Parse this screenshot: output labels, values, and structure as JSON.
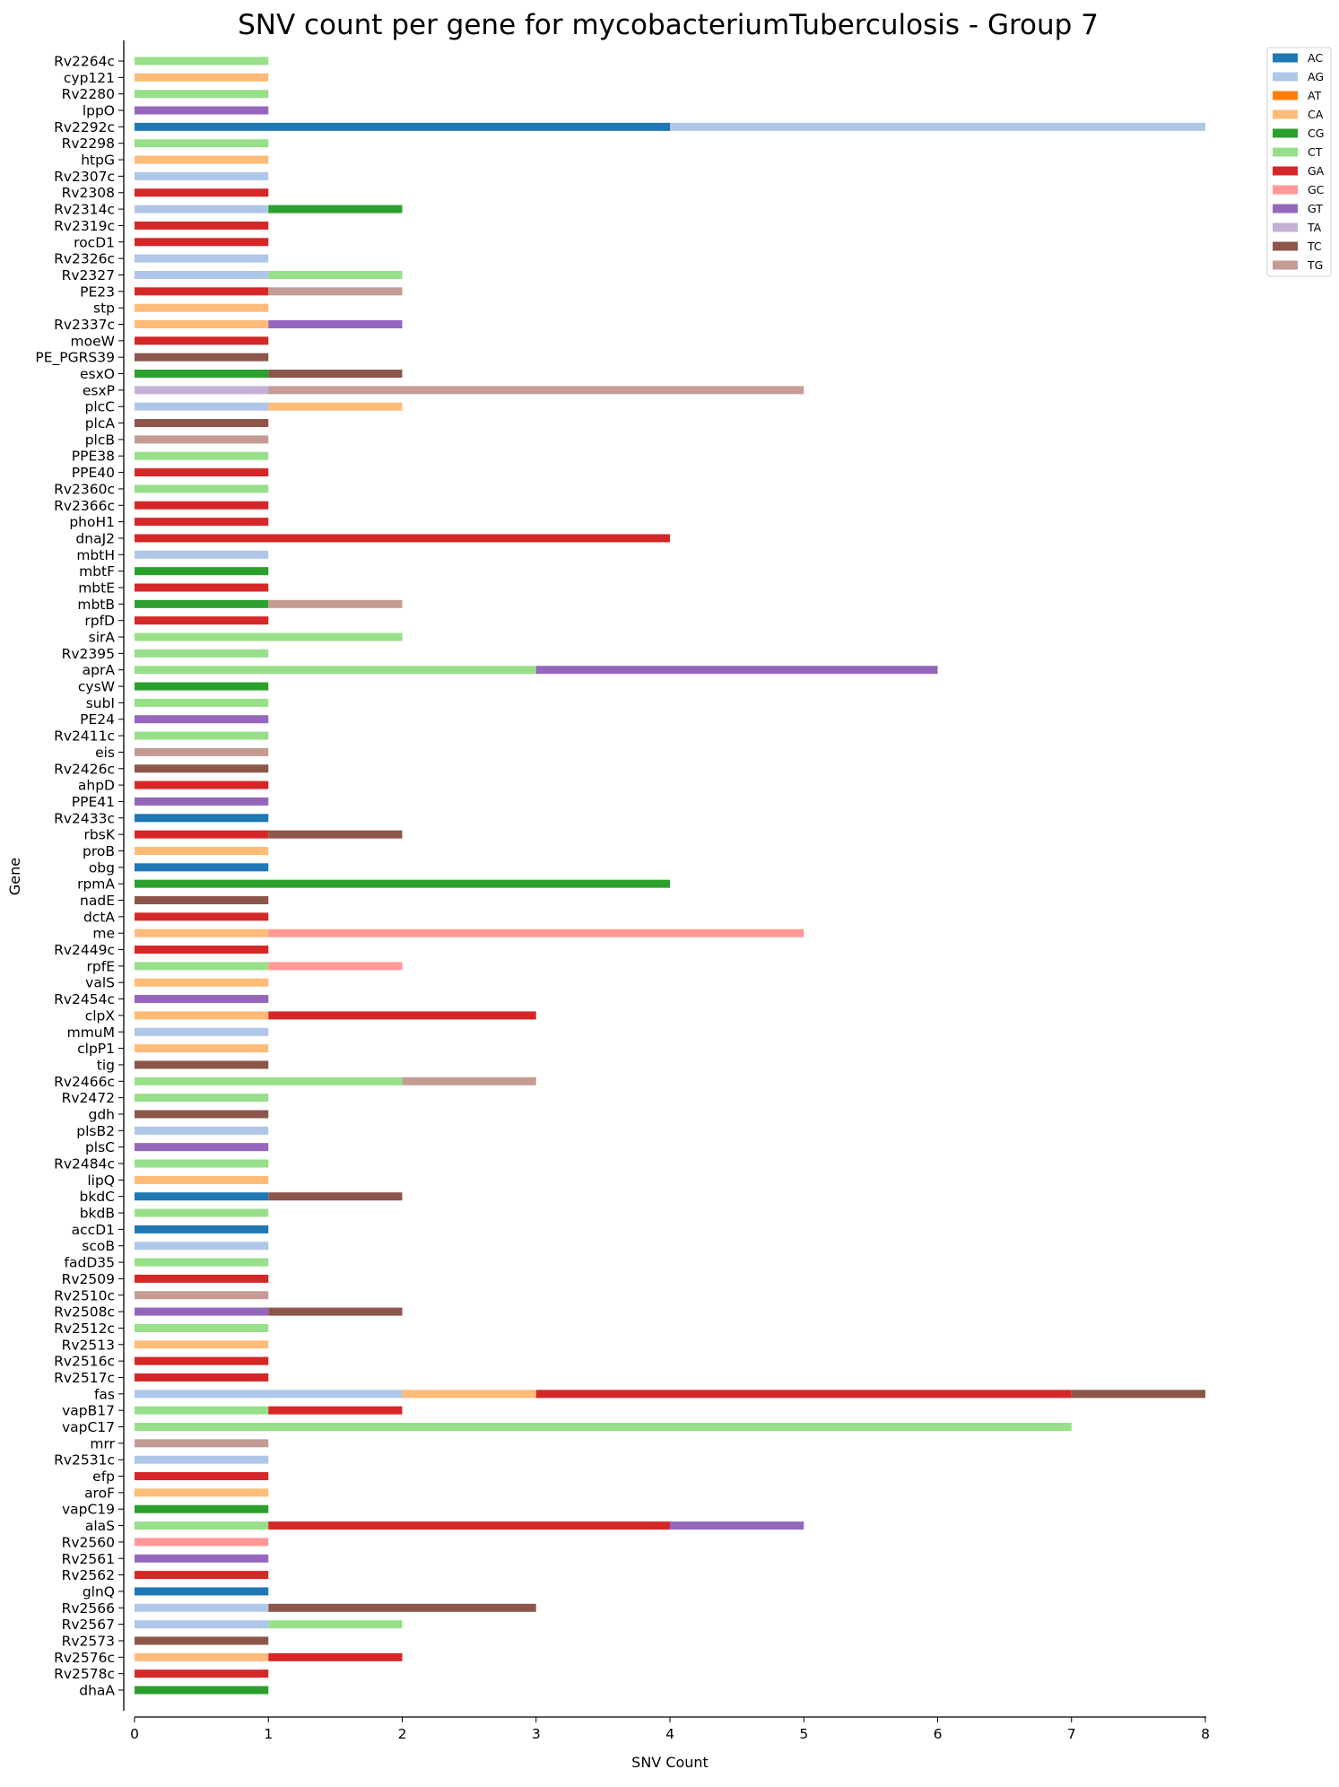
{
  "chart_data": {
    "type": "bar",
    "orientation": "horizontal",
    "stacked": true,
    "title": "SNV count per gene for mycobacteriumTuberculosis - Group 7",
    "xlabel": "SNV Count",
    "ylabel": "Gene",
    "xlim": [
      0,
      8
    ],
    "xticks": [
      "0",
      "1",
      "2",
      "3",
      "4",
      "5",
      "6",
      "7",
      "8"
    ],
    "grid": false,
    "legend_position": "top-right-outside",
    "legend": [
      {
        "name": "AC",
        "color": "#1f77b4"
      },
      {
        "name": "AG",
        "color": "#aec7e8"
      },
      {
        "name": "AT",
        "color": "#ff7f0e"
      },
      {
        "name": "CA",
        "color": "#ffbb78"
      },
      {
        "name": "CG",
        "color": "#2ca02c"
      },
      {
        "name": "CT",
        "color": "#98df8a"
      },
      {
        "name": "GA",
        "color": "#d62728"
      },
      {
        "name": "GC",
        "color": "#ff9896"
      },
      {
        "name": "GT",
        "color": "#9467bd"
      },
      {
        "name": "TA",
        "color": "#c5b0d5"
      },
      {
        "name": "TC",
        "color": "#8c564b"
      },
      {
        "name": "TG",
        "color": "#c49c94"
      }
    ],
    "genes": [
      {
        "gene": "Rv2264c",
        "snvs": {
          "CT": 1
        }
      },
      {
        "gene": "cyp121",
        "snvs": {
          "CA": 1
        }
      },
      {
        "gene": "Rv2280",
        "snvs": {
          "CT": 1
        }
      },
      {
        "gene": "lppO",
        "snvs": {
          "GT": 1
        }
      },
      {
        "gene": "Rv2292c",
        "snvs": {
          "AC": 4,
          "AG": 4
        }
      },
      {
        "gene": "Rv2298",
        "snvs": {
          "CT": 1
        }
      },
      {
        "gene": "htpG",
        "snvs": {
          "CA": 1
        }
      },
      {
        "gene": "Rv2307c",
        "snvs": {
          "AG": 1
        }
      },
      {
        "gene": "Rv2308",
        "snvs": {
          "GA": 1
        }
      },
      {
        "gene": "Rv2314c",
        "snvs": {
          "AG": 1,
          "CG": 1
        }
      },
      {
        "gene": "Rv2319c",
        "snvs": {
          "GA": 1
        }
      },
      {
        "gene": "rocD1",
        "snvs": {
          "GA": 1
        }
      },
      {
        "gene": "Rv2326c",
        "snvs": {
          "AG": 1
        }
      },
      {
        "gene": "Rv2327",
        "snvs": {
          "AG": 1,
          "CT": 1
        }
      },
      {
        "gene": "PE23",
        "snvs": {
          "GA": 1,
          "TG": 1
        }
      },
      {
        "gene": "stp",
        "snvs": {
          "CA": 1
        }
      },
      {
        "gene": "Rv2337c",
        "snvs": {
          "CA": 1,
          "GT": 1
        }
      },
      {
        "gene": "moeW",
        "snvs": {
          "GA": 1
        }
      },
      {
        "gene": "PE_PGRS39",
        "snvs": {
          "TC": 1
        }
      },
      {
        "gene": "esxO",
        "snvs": {
          "CG": 1,
          "TC": 1
        }
      },
      {
        "gene": "esxP",
        "snvs": {
          "TA": 1,
          "TG": 4
        }
      },
      {
        "gene": "plcC",
        "snvs": {
          "AG": 1,
          "CA": 1
        }
      },
      {
        "gene": "plcA",
        "snvs": {
          "TC": 1
        }
      },
      {
        "gene": "plcB",
        "snvs": {
          "TG": 1
        }
      },
      {
        "gene": "PPE38",
        "snvs": {
          "CT": 1
        }
      },
      {
        "gene": "PPE40",
        "snvs": {
          "GA": 1
        }
      },
      {
        "gene": "Rv2360c",
        "snvs": {
          "CT": 1
        }
      },
      {
        "gene": "Rv2366c",
        "snvs": {
          "GA": 1
        }
      },
      {
        "gene": "phoH1",
        "snvs": {
          "GA": 1
        }
      },
      {
        "gene": "dnaJ2",
        "snvs": {
          "GA": 4
        }
      },
      {
        "gene": "mbtH",
        "snvs": {
          "AG": 1
        }
      },
      {
        "gene": "mbtF",
        "snvs": {
          "CG": 1
        }
      },
      {
        "gene": "mbtE",
        "snvs": {
          "GA": 1
        }
      },
      {
        "gene": "mbtB",
        "snvs": {
          "CG": 1,
          "TG": 1
        }
      },
      {
        "gene": "rpfD",
        "snvs": {
          "GA": 1
        }
      },
      {
        "gene": "sirA",
        "snvs": {
          "CT": 2
        }
      },
      {
        "gene": "Rv2395",
        "snvs": {
          "CT": 1
        }
      },
      {
        "gene": "aprA",
        "snvs": {
          "CT": 3,
          "GT": 3
        }
      },
      {
        "gene": "cysW",
        "snvs": {
          "CG": 1
        }
      },
      {
        "gene": "subI",
        "snvs": {
          "CT": 1
        }
      },
      {
        "gene": "PE24",
        "snvs": {
          "GT": 1
        }
      },
      {
        "gene": "Rv2411c",
        "snvs": {
          "CT": 1
        }
      },
      {
        "gene": "eis",
        "snvs": {
          "TG": 1
        }
      },
      {
        "gene": "Rv2426c",
        "snvs": {
          "TC": 1
        }
      },
      {
        "gene": "ahpD",
        "snvs": {
          "GA": 1
        }
      },
      {
        "gene": "PPE41",
        "snvs": {
          "GT": 1
        }
      },
      {
        "gene": "Rv2433c",
        "snvs": {
          "AC": 1
        }
      },
      {
        "gene": "rbsK",
        "snvs": {
          "GA": 1,
          "TC": 1
        }
      },
      {
        "gene": "proB",
        "snvs": {
          "CA": 1
        }
      },
      {
        "gene": "obg",
        "snvs": {
          "AC": 1
        }
      },
      {
        "gene": "rpmA",
        "snvs": {
          "CG": 4
        }
      },
      {
        "gene": "nadE",
        "snvs": {
          "TC": 1
        }
      },
      {
        "gene": "dctA",
        "snvs": {
          "GA": 1
        }
      },
      {
        "gene": "me",
        "snvs": {
          "CA": 1,
          "GC": 4
        }
      },
      {
        "gene": "Rv2449c",
        "snvs": {
          "GA": 1
        }
      },
      {
        "gene": "rpfE",
        "snvs": {
          "CT": 1,
          "GC": 1
        }
      },
      {
        "gene": "valS",
        "snvs": {
          "CA": 1
        }
      },
      {
        "gene": "Rv2454c",
        "snvs": {
          "GT": 1
        }
      },
      {
        "gene": "clpX",
        "snvs": {
          "CA": 1,
          "GA": 2
        }
      },
      {
        "gene": "mmuM",
        "snvs": {
          "AG": 1
        }
      },
      {
        "gene": "clpP1",
        "snvs": {
          "CA": 1
        }
      },
      {
        "gene": "tig",
        "snvs": {
          "TC": 1
        }
      },
      {
        "gene": "Rv2466c",
        "snvs": {
          "CT": 2,
          "TG": 1
        }
      },
      {
        "gene": "Rv2472",
        "snvs": {
          "CT": 1
        }
      },
      {
        "gene": "gdh",
        "snvs": {
          "TC": 1
        }
      },
      {
        "gene": "plsB2",
        "snvs": {
          "AG": 1
        }
      },
      {
        "gene": "plsC",
        "snvs": {
          "GT": 1
        }
      },
      {
        "gene": "Rv2484c",
        "snvs": {
          "CT": 1
        }
      },
      {
        "gene": "lipQ",
        "snvs": {
          "CA": 1
        }
      },
      {
        "gene": "bkdC",
        "snvs": {
          "AC": 1,
          "TC": 1
        }
      },
      {
        "gene": "bkdB",
        "snvs": {
          "CT": 1
        }
      },
      {
        "gene": "accD1",
        "snvs": {
          "AC": 1
        }
      },
      {
        "gene": "scoB",
        "snvs": {
          "AG": 1
        }
      },
      {
        "gene": "fadD35",
        "snvs": {
          "CT": 1
        }
      },
      {
        "gene": "Rv2509",
        "snvs": {
          "GA": 1
        }
      },
      {
        "gene": "Rv2510c",
        "snvs": {
          "TG": 1
        }
      },
      {
        "gene": "Rv2508c",
        "snvs": {
          "GT": 1,
          "TC": 1
        }
      },
      {
        "gene": "Rv2512c",
        "snvs": {
          "CT": 1
        }
      },
      {
        "gene": "Rv2513",
        "snvs": {
          "CA": 1
        }
      },
      {
        "gene": "Rv2516c",
        "snvs": {
          "GA": 1
        }
      },
      {
        "gene": "Rv2517c",
        "snvs": {
          "GA": 1
        }
      },
      {
        "gene": "fas",
        "snvs": {
          "AG": 2,
          "CA": 1,
          "GA": 4,
          "TC": 1
        }
      },
      {
        "gene": "vapB17",
        "snvs": {
          "CT": 1,
          "GA": 1
        }
      },
      {
        "gene": "vapC17",
        "snvs": {
          "CT": 7
        }
      },
      {
        "gene": "mrr",
        "snvs": {
          "TG": 1
        }
      },
      {
        "gene": "Rv2531c",
        "snvs": {
          "AG": 1
        }
      },
      {
        "gene": "efp",
        "snvs": {
          "GA": 1
        }
      },
      {
        "gene": "aroF",
        "snvs": {
          "CA": 1
        }
      },
      {
        "gene": "vapC19",
        "snvs": {
          "CG": 1
        }
      },
      {
        "gene": "alaS",
        "snvs": {
          "CT": 1,
          "GA": 3,
          "GT": 1
        }
      },
      {
        "gene": "Rv2560",
        "snvs": {
          "GC": 1
        }
      },
      {
        "gene": "Rv2561",
        "snvs": {
          "GT": 1
        }
      },
      {
        "gene": "Rv2562",
        "snvs": {
          "GA": 1
        }
      },
      {
        "gene": "glnQ",
        "snvs": {
          "AC": 1
        }
      },
      {
        "gene": "Rv2566",
        "snvs": {
          "AG": 1,
          "TC": 2
        }
      },
      {
        "gene": "Rv2567",
        "snvs": {
          "AG": 1,
          "CT": 1
        }
      },
      {
        "gene": "Rv2573",
        "snvs": {
          "TC": 1
        }
      },
      {
        "gene": "Rv2576c",
        "snvs": {
          "CA": 1,
          "GA": 1
        }
      },
      {
        "gene": "Rv2578c",
        "snvs": {
          "GA": 1
        }
      },
      {
        "gene": "dhaA",
        "snvs": {
          "CG": 1
        }
      }
    ]
  }
}
